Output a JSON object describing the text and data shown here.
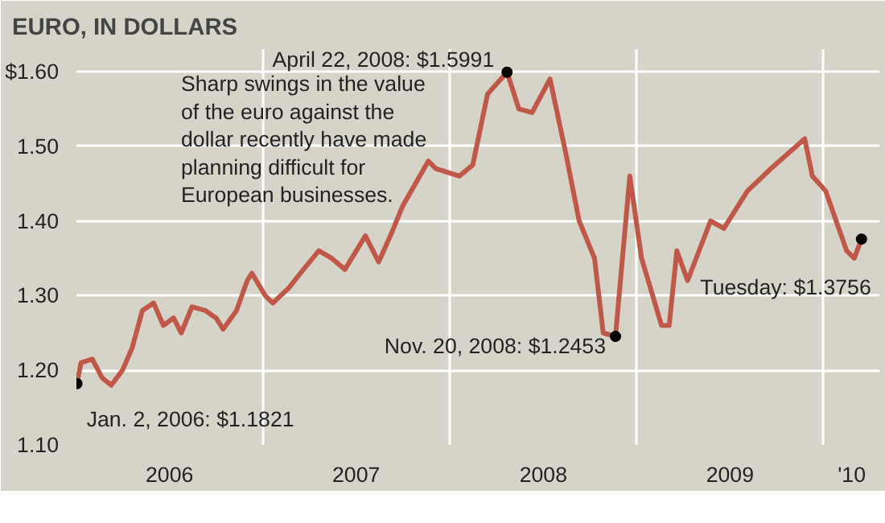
{
  "chart_data": {
    "type": "line",
    "title": "EURO, IN DOLLARS",
    "x": [
      "2006-01-02",
      "2006-01-10",
      "2006-02-01",
      "2006-02-20",
      "2006-03-10",
      "2006-04-01",
      "2006-04-20",
      "2006-05-10",
      "2006-06-01",
      "2006-06-20",
      "2006-07-10",
      "2006-07-25",
      "2006-08-15",
      "2006-09-10",
      "2006-10-01",
      "2006-10-15",
      "2006-11-10",
      "2006-12-01",
      "2006-12-10",
      "2007-01-05",
      "2007-01-20",
      "2007-02-20",
      "2007-03-15",
      "2007-04-20",
      "2007-05-15",
      "2007-06-10",
      "2007-07-20",
      "2007-08-15",
      "2007-09-10",
      "2007-10-01",
      "2007-11-20",
      "2007-12-05",
      "2008-01-20",
      "2008-02-15",
      "2008-03-15",
      "2008-04-22",
      "2008-05-15",
      "2008-06-10",
      "2008-07-15",
      "2008-08-15",
      "2008-09-10",
      "2008-10-10",
      "2008-10-27",
      "2008-11-20",
      "2008-12-18",
      "2009-01-10",
      "2009-02-18",
      "2009-03-05",
      "2009-03-20",
      "2009-04-10",
      "2009-05-25",
      "2009-06-20",
      "2009-08-05",
      "2009-09-20",
      "2009-11-25",
      "2009-12-10",
      "2010-01-05",
      "2010-02-15",
      "2010-03-02",
      "2010-03-16"
    ],
    "series": [
      {
        "color": "#c0584a",
        "values": [
          1.1821,
          1.21,
          1.215,
          1.19,
          1.18,
          1.2,
          1.23,
          1.28,
          1.29,
          1.26,
          1.27,
          1.25,
          1.285,
          1.28,
          1.27,
          1.255,
          1.28,
          1.32,
          1.33,
          1.3,
          1.29,
          1.31,
          1.33,
          1.36,
          1.35,
          1.335,
          1.38,
          1.345,
          1.385,
          1.42,
          1.48,
          1.47,
          1.46,
          1.475,
          1.57,
          1.5991,
          1.55,
          1.545,
          1.59,
          1.49,
          1.4,
          1.35,
          1.25,
          1.2453,
          1.46,
          1.35,
          1.26,
          1.26,
          1.36,
          1.32,
          1.4,
          1.39,
          1.44,
          1.47,
          1.51,
          1.46,
          1.44,
          1.36,
          1.35,
          1.3756
        ]
      }
    ],
    "xlim": [
      "2006-01-01",
      "2010-04-20"
    ],
    "xticks": [
      {
        "value": "2006-01-01",
        "label": null
      },
      {
        "value": "2006-07-02",
        "label": "2006"
      },
      {
        "value": "2007-01-01",
        "label": null
      },
      {
        "value": "2007-07-02",
        "label": "2007"
      },
      {
        "value": "2008-01-01",
        "label": null
      },
      {
        "value": "2008-07-02",
        "label": "2008"
      },
      {
        "value": "2009-01-01",
        "label": null
      },
      {
        "value": "2009-07-02",
        "label": "2009"
      },
      {
        "value": "2010-01-01",
        "label": null
      },
      {
        "value": "2010-02-25",
        "label": "'10"
      }
    ],
    "ylim": [
      1.1,
      1.63
    ],
    "yticks": [
      {
        "value": 1.1,
        "label": "1.10"
      },
      {
        "value": 1.2,
        "label": "1.20"
      },
      {
        "value": 1.3,
        "label": "1.30"
      },
      {
        "value": 1.4,
        "label": "1.40"
      },
      {
        "value": 1.5,
        "label": "1.50"
      },
      {
        "value": 1.6,
        "label": "$1.60"
      }
    ],
    "grid": true,
    "annotations": [
      "Sharp swings in the value\nof the euro against the\ndollar recently have made\nplanning difficult for\nEuropean businesses.",
      {
        "text": "April 22, 2008: $1.5991",
        "x": "2008-04-22",
        "y": 1.5991
      },
      {
        "text": "Nov. 20, 2008: $1.2453",
        "x": "2008-11-20",
        "y": 1.2453
      },
      {
        "text": "Jan. 2, 2006: $1.1821",
        "x": "2006-01-02",
        "y": 1.1821
      },
      {
        "text": "Tuesday: $1.3756",
        "x": "2010-03-16",
        "y": 1.3756
      }
    ]
  }
}
